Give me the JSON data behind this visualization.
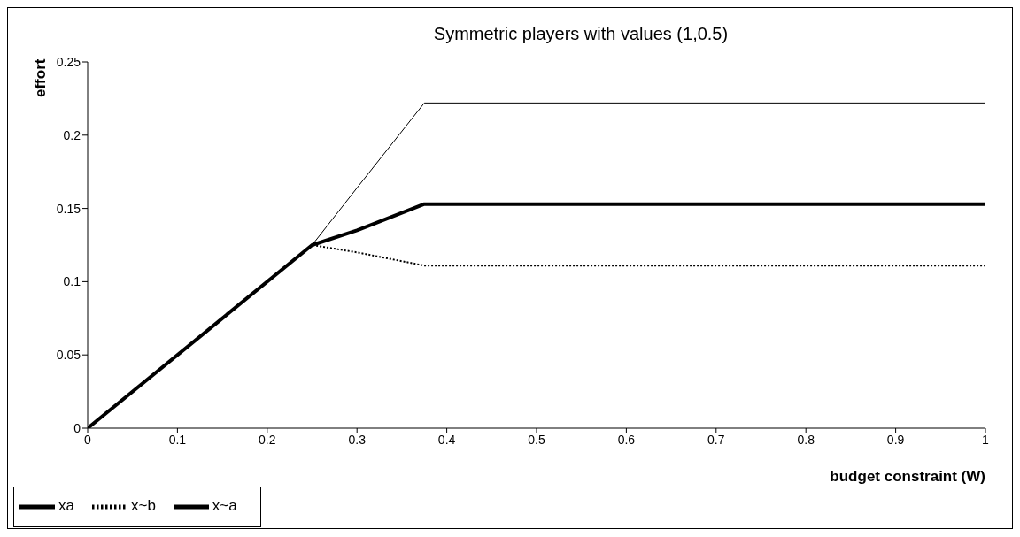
{
  "chart_data": {
    "type": "line",
    "title": "Symmetric players with values (1,0.5)",
    "xlabel": "budget constraint (W)",
    "ylabel": "effort",
    "x": [
      0,
      0.25,
      0.3,
      0.375,
      1
    ],
    "series": [
      {
        "name": "xa",
        "color": "#000000",
        "values": [
          0,
          0.125,
          0.135,
          0.153,
          0.153
        ]
      },
      {
        "name": "x~b",
        "color": "#000000",
        "values": [
          0,
          0.125,
          0.12,
          0.111,
          0.111
        ],
        "line_style": "dotted"
      },
      {
        "name": "x~a",
        "color": "#000000",
        "values": [
          0,
          0.125,
          0.164,
          0.222,
          0.222
        ]
      }
    ],
    "xlim": [
      0,
      1
    ],
    "xticks": [
      0,
      0.1,
      0.2,
      0.3,
      0.4,
      0.5,
      0.6,
      0.7,
      0.8,
      0.9,
      1
    ],
    "ylim": [
      0,
      0.25
    ],
    "yticks": [
      0,
      0.05,
      0.1,
      0.15,
      0.2,
      0.25
    ],
    "grid": false,
    "legend": "bottom left",
    "marker": "none",
    "line_style": "solid"
  }
}
